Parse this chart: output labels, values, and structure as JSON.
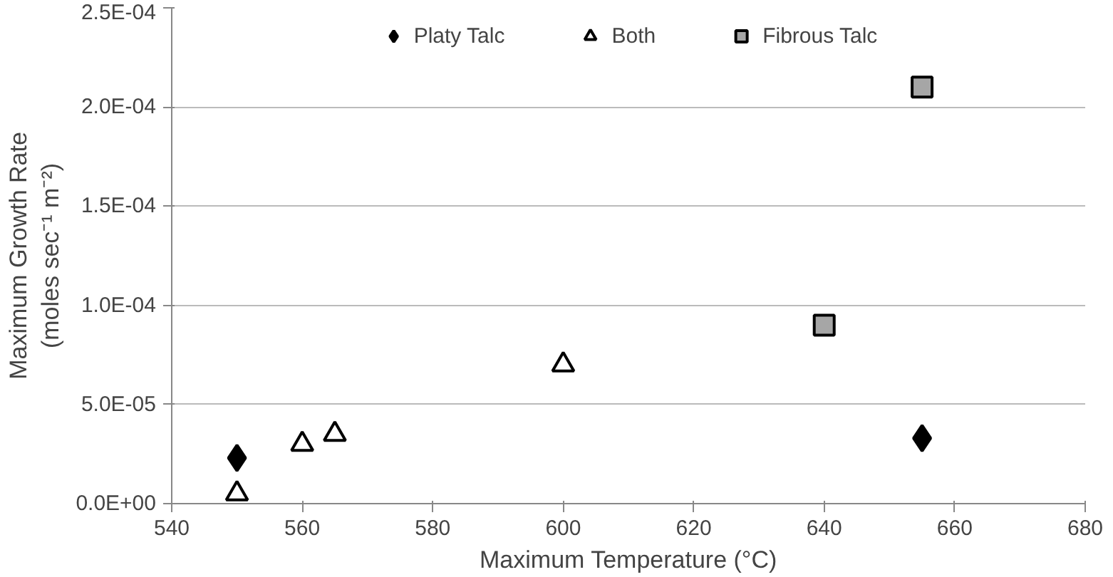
{
  "chart_data": {
    "type": "scatter",
    "xlabel": "Maximum Temperature (°C)",
    "ylabel": "Maximum Growth Rate\n(moles sec⁻¹ m⁻²)",
    "xlim": [
      540,
      680
    ],
    "xticks": [
      540,
      560,
      580,
      600,
      620,
      640,
      660,
      680
    ],
    "ylim": [
      0,
      0.00025
    ],
    "yticks": [
      {
        "value": 0,
        "label": "0.0E+00"
      },
      {
        "value": 5e-05,
        "label": "5.0E-05"
      },
      {
        "value": 0.0001,
        "label": "1.0E-04"
      },
      {
        "value": 0.00015,
        "label": "1.5E-04"
      },
      {
        "value": 0.0002,
        "label": "2.0E-04"
      },
      {
        "value": 0.00025,
        "label": "2.5E-04"
      }
    ],
    "grid": "y",
    "legend": "top",
    "series": [
      {
        "name": "Platy Talc",
        "color": "#000000",
        "marker": "diamond",
        "x": [
          550,
          655
        ],
        "values": [
          2.3e-05,
          3.3e-05
        ]
      },
      {
        "name": "Both",
        "color": "#ffffff",
        "marker": "triangle",
        "x": [
          550,
          560,
          565,
          600
        ],
        "values": [
          5e-06,
          3e-05,
          3.5e-05,
          7e-05
        ]
      },
      {
        "name": "Fibrous Talc",
        "color": "#a6a6a6",
        "marker": "square",
        "x": [
          640,
          655
        ],
        "values": [
          9e-05,
          0.00021
        ]
      }
    ]
  }
}
